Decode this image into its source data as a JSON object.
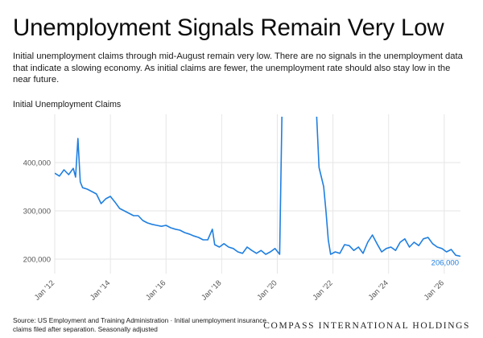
{
  "header": {
    "title": "Unemployment Signals Remain Very Low",
    "subtitle": "Initial unemployment claims through mid-August remain very low. There are no signals in the unemployment data that indicate a slowing economy. As initial claims are fewer, the unemployment rate should also stay low in the near future."
  },
  "footer": {
    "source": "Source: US Employment and Training Administration · Initial unemployment insurance claims filed after separation. Seasonally adjusted",
    "brand": "COMPASS INTERNATIONAL HOLDINGS"
  },
  "colors": {
    "line": "#1f7fe0",
    "grid": "#e6e6e6",
    "axis_text": "#555555"
  },
  "chart_data": {
    "type": "line",
    "title": "Initial Unemployment Claims",
    "xlabel": "",
    "ylabel": "",
    "x_ticks": [
      "Jan '12",
      "Jan '14",
      "Jan '16",
      "Jan '18",
      "Jan '20",
      "Jan '22",
      "Jan '24",
      "Jan '26"
    ],
    "y_ticks": [
      "200,000",
      "300,000",
      "400,000"
    ],
    "ylim": [
      170000,
      500000
    ],
    "xlim": [
      "2012-01",
      "2026-08"
    ],
    "grid": true,
    "end_label": "206,000",
    "series": [
      {
        "x": [
          "2012-01",
          "2012-03",
          "2012-05",
          "2012-07",
          "2012-09",
          "2012-10",
          "2012-11",
          "2012-12",
          "2013-01",
          "2013-03",
          "2013-05",
          "2013-07",
          "2013-09",
          "2013-11",
          "2014-01",
          "2014-03",
          "2014-05",
          "2014-07",
          "2014-09",
          "2014-11",
          "2015-01",
          "2015-03",
          "2015-05",
          "2015-07",
          "2015-09",
          "2015-11",
          "2016-01",
          "2016-03",
          "2016-05",
          "2016-07",
          "2016-09",
          "2016-11",
          "2017-01",
          "2017-03",
          "2017-05",
          "2017-07",
          "2017-09",
          "2017-10",
          "2017-12",
          "2018-02",
          "2018-04",
          "2018-06",
          "2018-08",
          "2018-10",
          "2018-12",
          "2019-02",
          "2019-04",
          "2019-06",
          "2019-08",
          "2019-10",
          "2019-12",
          "2020-02",
          "2020-03",
          "2021-06",
          "2021-07",
          "2021-09",
          "2021-10",
          "2021-11",
          "2021-12",
          "2022-02",
          "2022-04",
          "2022-06",
          "2022-08",
          "2022-10",
          "2022-12",
          "2023-02",
          "2023-04",
          "2023-06",
          "2023-08",
          "2023-10",
          "2023-12",
          "2024-02",
          "2024-04",
          "2024-06",
          "2024-08",
          "2024-10",
          "2024-12",
          "2025-02",
          "2025-04",
          "2025-06",
          "2025-08",
          "2025-10",
          "2025-12",
          "2026-02",
          "2026-04",
          "2026-06",
          "2026-08"
        ],
        "values": [
          378000,
          372000,
          385000,
          375000,
          388000,
          370000,
          450000,
          360000,
          348000,
          345000,
          340000,
          335000,
          315000,
          325000,
          330000,
          318000,
          305000,
          300000,
          295000,
          290000,
          290000,
          280000,
          275000,
          272000,
          270000,
          268000,
          270000,
          265000,
          262000,
          260000,
          255000,
          252000,
          248000,
          245000,
          240000,
          240000,
          262000,
          230000,
          225000,
          232000,
          225000,
          222000,
          215000,
          212000,
          225000,
          218000,
          212000,
          218000,
          210000,
          215000,
          222000,
          210000,
          495000,
          495000,
          390000,
          350000,
          298000,
          240000,
          210000,
          215000,
          212000,
          230000,
          228000,
          218000,
          225000,
          212000,
          235000,
          250000,
          232000,
          215000,
          222000,
          225000,
          218000,
          235000,
          242000,
          225000,
          235000,
          228000,
          242000,
          245000,
          232000,
          225000,
          222000,
          215000,
          220000,
          208000,
          206000
        ]
      }
    ]
  }
}
